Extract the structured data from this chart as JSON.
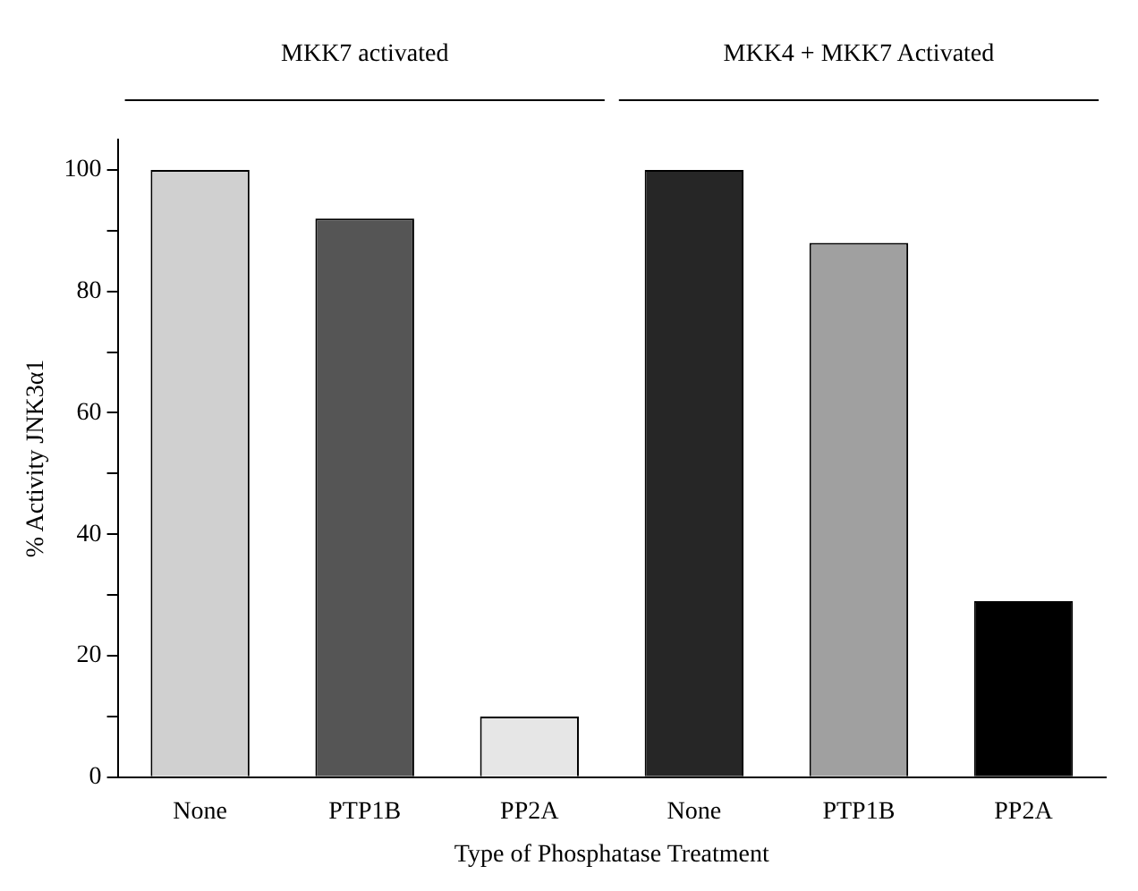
{
  "chart_data": {
    "type": "bar",
    "categories": [
      "None",
      "PTP1B",
      "PP2A",
      "None",
      "PTP1B",
      "PP2A"
    ],
    "values": [
      100,
      92,
      10,
      100,
      88,
      29
    ],
    "colors": [
      "#d0d0d0",
      "#555555",
      "#e6e6e6",
      "#262626",
      "#a0a0a0",
      "#000000"
    ],
    "xlabel": "Type of Phosphatase Treatment",
    "ylabel": "% Activity JNK3α1",
    "ylim": [
      0,
      105
    ],
    "yticks": [
      0,
      {
        "value": 10,
        "label": null
      },
      20,
      {
        "value": 30,
        "label": null
      },
      40,
      {
        "value": 50,
        "label": null
      },
      60,
      {
        "value": 70,
        "label": null
      },
      80,
      {
        "value": 90,
        "label": null
      },
      100
    ],
    "annotations": [
      "MKK7 activated",
      "MKK4 + MKK7 Activated"
    ],
    "grid": false,
    "legend": false
  }
}
